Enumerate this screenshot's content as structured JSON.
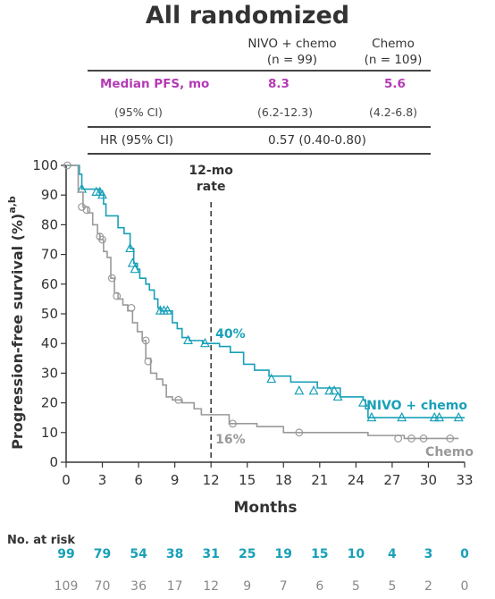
{
  "table": {
    "title": "All randomized",
    "col1_line1": "NIVO + chemo",
    "col1_line2": "(n = 99)",
    "col2_line1": "Chemo",
    "col2_line2": "(n = 109)",
    "median_label": "Median PFS, mo",
    "median_nivo": "8.3",
    "median_chemo": "5.6",
    "ci_label": "(95% CI)",
    "ci_nivo": "(6.2-12.3)",
    "ci_chemo": "(4.2-6.8)",
    "hr_label": "HR (95% CI)",
    "hr_value": "0.57 (0.40-0.80)"
  },
  "colors": {
    "nivo": "#18a0b8",
    "chemo": "#999999",
    "median": "#b43ab4"
  },
  "chart_data": {
    "type": "line",
    "ylabel": "Progression-free survival (%)",
    "ylabel_sup": "a,b",
    "xlabel": "Months",
    "xlim": [
      0,
      33
    ],
    "ylim": [
      0,
      100
    ],
    "x_ticks": [
      0,
      3,
      6,
      9,
      12,
      15,
      18,
      21,
      24,
      27,
      30,
      33
    ],
    "y_ticks": [
      0,
      10,
      20,
      30,
      40,
      50,
      60,
      70,
      80,
      90,
      100
    ],
    "reference_line": {
      "x": 12,
      "label_line1": "12-mo",
      "label_line2": "rate"
    },
    "annotations": [
      {
        "series": "NIVO + chemo",
        "text": "40%",
        "x": 12,
        "y": 40
      },
      {
        "series": "Chemo",
        "text": "16%",
        "x": 12,
        "y": 16
      }
    ],
    "series": [
      {
        "name": "NIVO + chemo",
        "label": "NIVO + chemo",
        "color": "#18a0b8",
        "marker": "triangle",
        "steps": [
          [
            0,
            100
          ],
          [
            1.1,
            97
          ],
          [
            1.3,
            92
          ],
          [
            2.8,
            90
          ],
          [
            3.1,
            87
          ],
          [
            3.3,
            83
          ],
          [
            4.3,
            79
          ],
          [
            4.8,
            77
          ],
          [
            5.3,
            72
          ],
          [
            5.6,
            67
          ],
          [
            5.9,
            65
          ],
          [
            6.1,
            62
          ],
          [
            6.6,
            60
          ],
          [
            6.9,
            58
          ],
          [
            7.3,
            55
          ],
          [
            7.6,
            52
          ],
          [
            7.8,
            51
          ],
          [
            8.8,
            47
          ],
          [
            9.2,
            45
          ],
          [
            9.6,
            42
          ],
          [
            10.2,
            41
          ],
          [
            11.3,
            40
          ],
          [
            12,
            40
          ],
          [
            12.7,
            39
          ],
          [
            13.6,
            37
          ],
          [
            14.7,
            33
          ],
          [
            15.6,
            31
          ],
          [
            16.8,
            29
          ],
          [
            18.6,
            27
          ],
          [
            20.8,
            25
          ],
          [
            21.8,
            25
          ],
          [
            22.7,
            22
          ],
          [
            24.6,
            21
          ],
          [
            24.8,
            18
          ],
          [
            25.0,
            15
          ],
          [
            33,
            15
          ]
        ],
        "censors": [
          [
            1.3,
            92
          ],
          [
            2.5,
            91
          ],
          [
            2.8,
            91
          ],
          [
            3.0,
            90
          ],
          [
            5.3,
            72
          ],
          [
            5.5,
            67
          ],
          [
            5.7,
            65
          ],
          [
            7.8,
            51
          ],
          [
            8.1,
            51
          ],
          [
            8.4,
            51
          ],
          [
            10.1,
            41
          ],
          [
            11.5,
            40
          ],
          [
            17.0,
            28
          ],
          [
            19.3,
            24
          ],
          [
            20.5,
            24
          ],
          [
            21.8,
            24
          ],
          [
            22.2,
            24
          ],
          [
            22.5,
            22
          ],
          [
            24.6,
            20
          ],
          [
            25.3,
            15
          ],
          [
            27.8,
            15
          ],
          [
            30.5,
            15
          ],
          [
            30.9,
            15
          ],
          [
            32.5,
            15
          ]
        ]
      },
      {
        "name": "Chemo",
        "label": "Chemo",
        "color": "#999999",
        "marker": "circle",
        "steps": [
          [
            0,
            100
          ],
          [
            1.0,
            91
          ],
          [
            1.4,
            86
          ],
          [
            1.8,
            84
          ],
          [
            2.2,
            80
          ],
          [
            2.6,
            77
          ],
          [
            2.8,
            75
          ],
          [
            3.1,
            71
          ],
          [
            3.4,
            69
          ],
          [
            3.7,
            62
          ],
          [
            4.0,
            57
          ],
          [
            4.3,
            55
          ],
          [
            4.7,
            53
          ],
          [
            5.1,
            51
          ],
          [
            5.5,
            47
          ],
          [
            5.9,
            44
          ],
          [
            6.3,
            41
          ],
          [
            6.6,
            35
          ],
          [
            7.0,
            30
          ],
          [
            7.5,
            28
          ],
          [
            8.0,
            26
          ],
          [
            8.3,
            22
          ],
          [
            8.8,
            21
          ],
          [
            9.6,
            20
          ],
          [
            10.6,
            18
          ],
          [
            11.2,
            16
          ],
          [
            13.5,
            13
          ],
          [
            15.8,
            12
          ],
          [
            18.0,
            10
          ],
          [
            25.0,
            9
          ],
          [
            28.0,
            8
          ],
          [
            32.5,
            8
          ]
        ],
        "censors": [
          [
            0.1,
            100
          ],
          [
            1.3,
            86
          ],
          [
            1.7,
            85
          ],
          [
            2.8,
            76
          ],
          [
            3.0,
            75
          ],
          [
            3.8,
            62
          ],
          [
            4.2,
            56
          ],
          [
            5.4,
            52
          ],
          [
            6.6,
            41
          ],
          [
            6.8,
            34
          ],
          [
            9.3,
            21
          ],
          [
            13.8,
            13
          ],
          [
            19.3,
            10
          ],
          [
            27.5,
            8
          ],
          [
            28.6,
            8
          ],
          [
            29.6,
            8
          ],
          [
            31.8,
            8
          ]
        ]
      }
    ]
  },
  "risk_table": {
    "header": "No. at risk",
    "nivo": [
      "99",
      "79",
      "54",
      "38",
      "31",
      "25",
      "19",
      "15",
      "10",
      "4",
      "3",
      "0"
    ],
    "chemo": [
      "109",
      "70",
      "36",
      "17",
      "12",
      "9",
      "7",
      "6",
      "5",
      "5",
      "2",
      "0"
    ]
  }
}
